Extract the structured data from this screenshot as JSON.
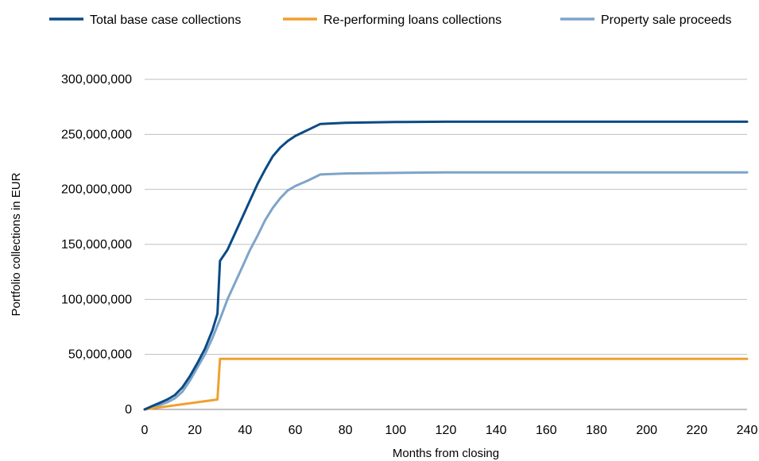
{
  "chart_data": {
    "type": "line",
    "xlabel": "Months from closing",
    "ylabel": "Portfolio collections in EUR",
    "xlim": [
      0,
      240
    ],
    "ylim": [
      0,
      300000000
    ],
    "x_ticks": [
      "0",
      "20",
      "40",
      "60",
      "80",
      "100",
      "120",
      "140",
      "160",
      "180",
      "200",
      "220",
      "240"
    ],
    "y_ticks": [
      "0",
      "50,000,000",
      "100,000,000",
      "150,000,000",
      "200,000,000",
      "250,000,000",
      "300,000,000"
    ],
    "grid": "horizontal",
    "legend_position": "top",
    "series": [
      {
        "name": "Total base case collections",
        "color": "#0b4a85",
        "points": [
          [
            0,
            0
          ],
          [
            3,
            3000000
          ],
          [
            6,
            6000000
          ],
          [
            9,
            9000000
          ],
          [
            12,
            13000000
          ],
          [
            15,
            20000000
          ],
          [
            18,
            30000000
          ],
          [
            21,
            42000000
          ],
          [
            24,
            55000000
          ],
          [
            27,
            72000000
          ],
          [
            29,
            87000000
          ],
          [
            30,
            135000000
          ],
          [
            33,
            145000000
          ],
          [
            36,
            160000000
          ],
          [
            39,
            175000000
          ],
          [
            42,
            190000000
          ],
          [
            45,
            205000000
          ],
          [
            48,
            218000000
          ],
          [
            51,
            230000000
          ],
          [
            54,
            238000000
          ],
          [
            57,
            244000000
          ],
          [
            60,
            248500000
          ],
          [
            65,
            254000000
          ],
          [
            70,
            259500000
          ],
          [
            80,
            260500000
          ],
          [
            100,
            261200000
          ],
          [
            120,
            261500000
          ],
          [
            160,
            261500000
          ],
          [
            200,
            261500000
          ],
          [
            240,
            261500000
          ]
        ]
      },
      {
        "name": "Re-performing loans collections",
        "color": "#f0a030",
        "points": [
          [
            0,
            0
          ],
          [
            29,
            9000000
          ],
          [
            30,
            46000000
          ],
          [
            60,
            46000000
          ],
          [
            120,
            46000000
          ],
          [
            180,
            46000000
          ],
          [
            240,
            46000000
          ]
        ]
      },
      {
        "name": "Property sale proceeds",
        "color": "#7ea4c8",
        "points": [
          [
            0,
            0
          ],
          [
            3,
            2000000
          ],
          [
            6,
            4000000
          ],
          [
            9,
            6500000
          ],
          [
            12,
            10000000
          ],
          [
            15,
            16000000
          ],
          [
            18,
            26000000
          ],
          [
            21,
            38000000
          ],
          [
            24,
            50000000
          ],
          [
            27,
            65000000
          ],
          [
            30,
            82000000
          ],
          [
            33,
            100000000
          ],
          [
            36,
            115000000
          ],
          [
            39,
            130000000
          ],
          [
            42,
            145000000
          ],
          [
            45,
            158000000
          ],
          [
            48,
            172000000
          ],
          [
            51,
            183000000
          ],
          [
            54,
            192000000
          ],
          [
            57,
            199000000
          ],
          [
            60,
            203000000
          ],
          [
            65,
            208000000
          ],
          [
            70,
            213500000
          ],
          [
            80,
            214500000
          ],
          [
            100,
            215000000
          ],
          [
            120,
            215500000
          ],
          [
            160,
            215500000
          ],
          [
            200,
            215500000
          ],
          [
            240,
            215500000
          ]
        ]
      }
    ]
  }
}
